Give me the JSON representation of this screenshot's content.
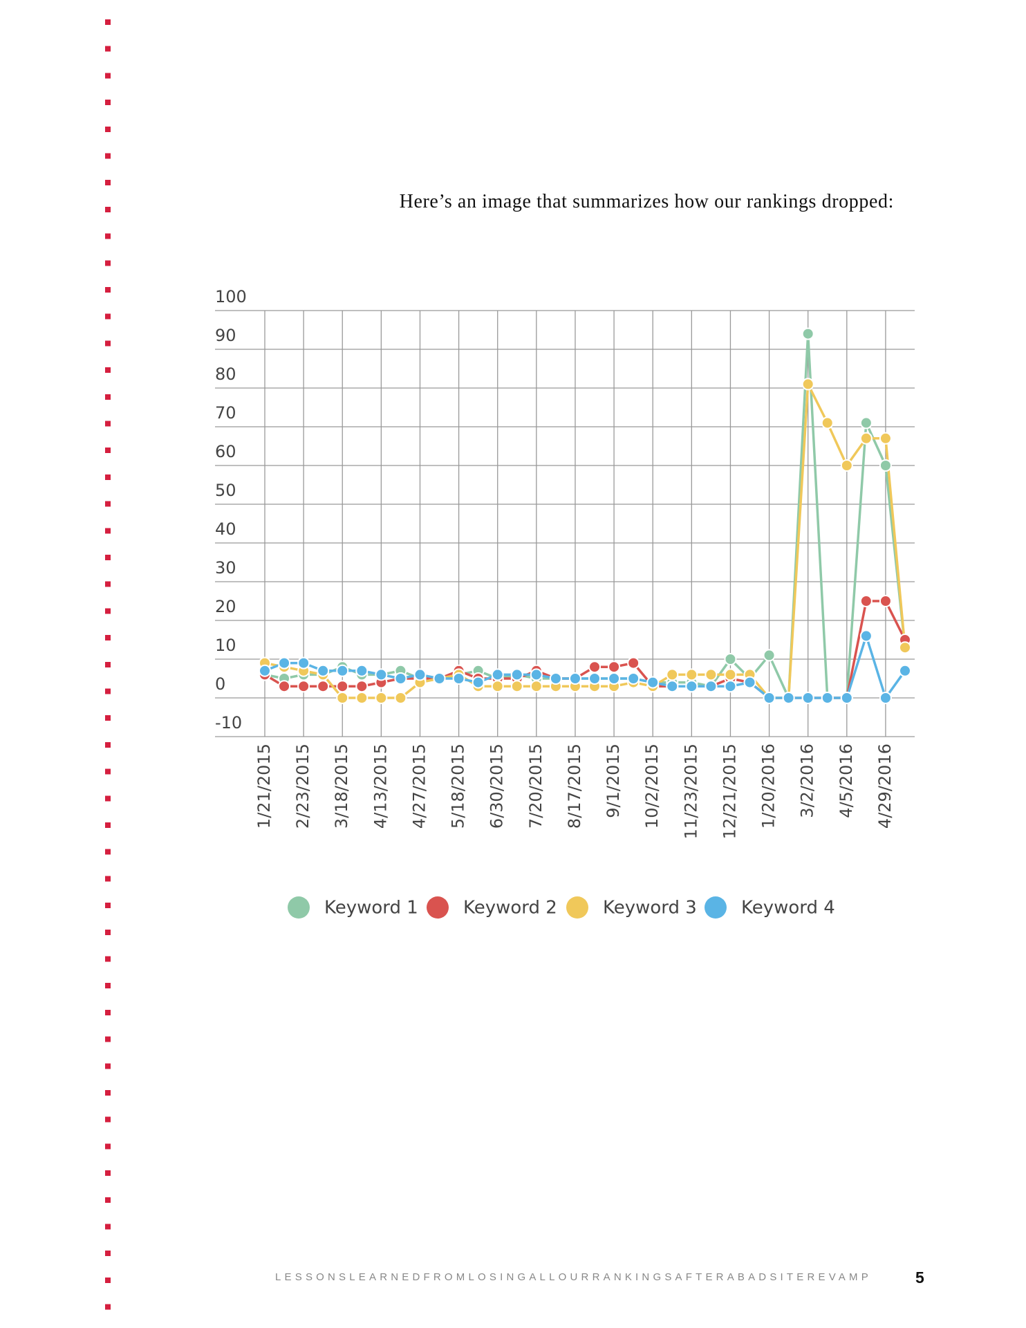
{
  "intro": "Here’s an image that summarizes how our rankings dropped:",
  "chart_data": {
    "type": "line",
    "categories": [
      "1/21/2015",
      null,
      "2/23/2015",
      null,
      "3/18/2015",
      null,
      "4/13/2015",
      null,
      "4/27/2015",
      null,
      "5/18/2015",
      null,
      "6/30/2015",
      null,
      "7/20/2015",
      null,
      "8/17/2015",
      null,
      "9/1/2015",
      null,
      "10/2/2015",
      null,
      "11/23/2015",
      null,
      "12/21/2015",
      null,
      "1/20/2016",
      null,
      "3/2/2016",
      null,
      "4/5/2016",
      null,
      "4/29/2016",
      null
    ],
    "series": [
      {
        "name": "Keyword 1",
        "color": "#8fc9a8",
        "values": [
          6,
          5,
          6,
          6,
          8,
          6,
          6,
          7,
          5,
          5,
          6,
          7,
          5,
          6,
          5,
          5,
          5,
          5,
          5,
          5,
          4,
          4,
          4,
          3,
          10,
          5,
          11,
          0,
          94,
          0,
          0,
          71,
          60,
          13
        ]
      },
      {
        "name": "Keyword 2",
        "color": "#d9534f",
        "values": [
          6,
          3,
          3,
          3,
          3,
          3,
          4,
          5,
          5,
          5,
          7,
          5,
          5,
          5,
          7,
          5,
          5,
          8,
          8,
          9,
          3,
          3,
          3,
          3,
          5,
          4,
          0,
          0,
          0,
          0,
          0,
          25,
          25,
          15
        ]
      },
      {
        "name": "Keyword 3",
        "color": "#f0c85a",
        "values": [
          9,
          8,
          7,
          6,
          0,
          0,
          0,
          0,
          4,
          5,
          6,
          3,
          3,
          3,
          3,
          3,
          3,
          3,
          3,
          4,
          3,
          6,
          6,
          6,
          6,
          6,
          0,
          0,
          81,
          71,
          60,
          67,
          67,
          13
        ]
      },
      {
        "name": "Keyword 4",
        "color": "#5ab4e5",
        "values": [
          7,
          9,
          9,
          7,
          7,
          7,
          6,
          5,
          6,
          5,
          5,
          4,
          6,
          6,
          6,
          5,
          5,
          5,
          5,
          5,
          4,
          3,
          3,
          3,
          3,
          4,
          0,
          0,
          0,
          0,
          0,
          16,
          0,
          7
        ]
      }
    ],
    "ylim": [
      -10,
      100
    ],
    "yticks": [
      100,
      90,
      80,
      70,
      60,
      50,
      40,
      30,
      20,
      10,
      0,
      -10
    ],
    "grid": true
  },
  "footer": {
    "text": "LESSONSLEARNEDFROMLOSINGALLOURRANKINGSAFTERABADSITEREVAMP",
    "page_number": "5"
  }
}
